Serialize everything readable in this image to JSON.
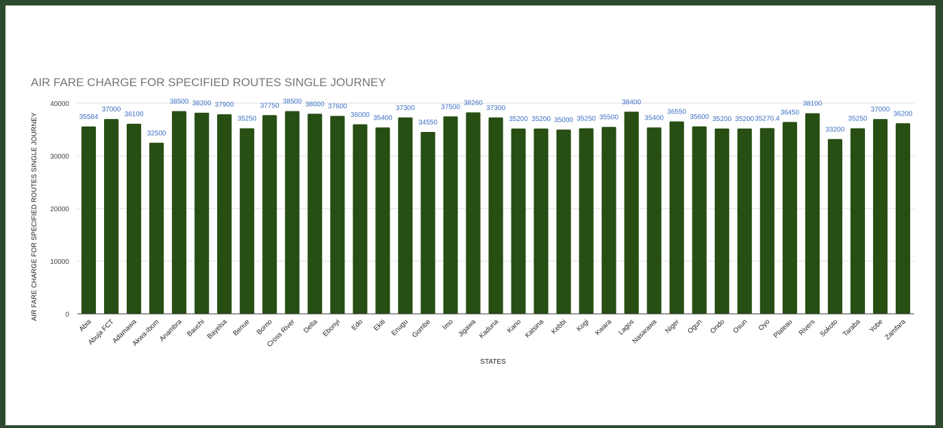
{
  "chart_data": {
    "type": "bar",
    "title": "AIR FARE CHARGE FOR SPECIFIED ROUTES SINGLE JOURNEY",
    "xlabel": "STATES",
    "ylabel": "AIR FARE CHARGE FOR SPECIFIED ROUTES SINGLE JOURNEY",
    "ylim": [
      0,
      40000
    ],
    "yticks": [
      0,
      10000,
      20000,
      30000,
      40000
    ],
    "grid": true,
    "legend": "none",
    "bar_color": "#274e13",
    "label_color": "#3c6fc4",
    "categories": [
      "Abia",
      "Abuja FCT",
      "Adamawa",
      "Akwa-Ibom",
      "Anambra",
      "Bauchi",
      "Bayelsa",
      "Benue",
      "Borno",
      "Cross River",
      "Delta",
      "Ebonyi",
      "Edo",
      "Ekiti",
      "Enugu",
      "Gombe",
      "Imo",
      "Jigawa",
      "Kaduna",
      "Kano",
      "Katsina",
      "Kebbi",
      "Kogi",
      "Kwara",
      "Lagos",
      "Nasarawa",
      "Niger",
      "Ogun",
      "Ondo",
      "Osun",
      "Oyo",
      "Plateau",
      "Rivers",
      "Sokoto",
      "Taraba",
      "Yobe",
      "Zamfara"
    ],
    "values": [
      35584,
      37000,
      36100,
      32500,
      38500,
      38200,
      37900,
      35250,
      37750,
      38500,
      38000,
      37600,
      36000,
      35400,
      37300,
      34550,
      37500,
      38260,
      37300,
      35200,
      35200,
      35000,
      35250,
      35500,
      38400,
      35400,
      36550,
      35600,
      35200,
      35200,
      35270.4,
      36450,
      38100,
      33200,
      35250,
      37000,
      36200
    ],
    "value_labels": [
      "35584",
      "37000",
      "36100",
      "32500",
      "38500",
      "38200",
      "37900",
      "35250",
      "37750",
      "38500",
      "38000",
      "37600",
      "36000",
      "35400",
      "37300",
      "34550",
      "37500",
      "38260",
      "37300",
      "35200",
      "35200",
      "35000",
      "35250",
      "35500",
      "38400",
      "35400",
      "36550",
      "35600",
      "35200",
      "35200",
      "35270.4",
      "36450",
      "38100",
      "33200",
      "35250",
      "37000",
      "36200"
    ]
  }
}
